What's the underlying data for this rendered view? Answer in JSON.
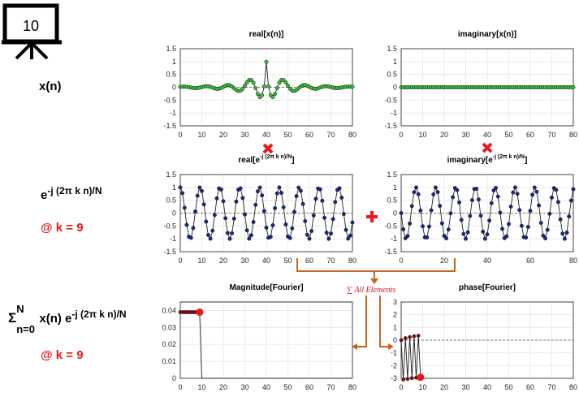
{
  "slide": {
    "number": "10"
  },
  "left_labels": {
    "row1": "x(n)",
    "row2_base": "e",
    "row2_exp": "-j (2π k n)/N",
    "row2_k": "@ k = 9",
    "row3_sigma": "Σ",
    "row3_sup": "N",
    "row3_sub": "n=0",
    "row3_mid": " x(n) e",
    "row3_exp": "-j (2π k n)/N",
    "row3_k": "@ k = 9"
  },
  "annotation": {
    "sum_label": "∑ All Elements"
  },
  "colors": {
    "green_marker": "#3cc43c",
    "blue_marker": "#1a2a8c",
    "dark_red_marker": "#8b1010",
    "highlight_red": "#e8191e",
    "arrow_orange": "#c8641e",
    "red_operator": "#e8191e"
  },
  "chart_data": [
    {
      "id": "real_x",
      "type": "line",
      "title": "real[x(n)]",
      "xlim": [
        0,
        80
      ],
      "ylim": [
        -1.5,
        1.5
      ],
      "xticks": [
        0,
        10,
        20,
        30,
        40,
        50,
        60,
        70,
        80
      ],
      "yticks": [
        -1.5,
        -1,
        -0.5,
        0,
        0.5,
        1,
        1.5
      ],
      "grid": true,
      "marker_color": "#3cc43c",
      "series": [
        {
          "x": [
            0,
            1,
            2,
            3,
            4,
            5,
            6,
            7,
            8,
            9,
            10,
            11,
            12,
            13,
            14,
            15,
            16,
            17,
            18,
            19,
            20,
            21,
            22,
            23,
            24,
            25,
            26,
            27,
            28,
            29,
            30,
            31,
            32,
            33,
            34,
            35,
            36,
            37,
            38,
            39,
            40,
            41,
            42,
            43,
            44,
            45,
            46,
            47,
            48,
            49,
            50,
            51,
            52,
            53,
            54,
            55,
            56,
            57,
            58,
            59,
            60,
            61,
            62,
            63,
            64,
            65,
            66,
            67,
            68,
            69,
            70,
            71,
            72,
            73,
            74,
            75,
            76,
            77,
            78,
            79,
            80
          ],
          "y": [
            0.016,
            0.024,
            0.025,
            0.019,
            0.006,
            -0.011,
            -0.026,
            -0.033,
            -0.029,
            -0.014,
            0.008,
            0.03,
            0.042,
            0.039,
            0.02,
            -0.011,
            -0.042,
            -0.059,
            -0.054,
            -0.026,
            0.017,
            0.062,
            0.088,
            0.081,
            0.035,
            -0.035,
            -0.104,
            -0.144,
            -0.13,
            -0.057,
            0.064,
            0.191,
            0.28,
            0.283,
            0.175,
            -0.035,
            -0.258,
            -0.384,
            -0.307,
            0.036,
            0.99,
            0.036,
            -0.307,
            -0.384,
            -0.258,
            -0.035,
            0.175,
            0.283,
            0.28,
            0.191,
            0.064,
            -0.057,
            -0.13,
            -0.144,
            -0.104,
            -0.035,
            0.035,
            0.081,
            0.088,
            0.062,
            0.017,
            -0.026,
            -0.054,
            -0.059,
            -0.042,
            -0.011,
            0.02,
            0.039,
            0.042,
            0.03,
            0.008,
            -0.014,
            -0.029,
            -0.033,
            -0.026,
            -0.011,
            0.006,
            0.019,
            0.025,
            0.024,
            0.016
          ]
        }
      ]
    },
    {
      "id": "imag_x",
      "type": "line",
      "title": "imaginary[x(n)]",
      "xlim": [
        0,
        80
      ],
      "ylim": [
        -1.5,
        1.5
      ],
      "xticks": [
        0,
        10,
        20,
        30,
        40,
        50,
        60,
        70,
        80
      ],
      "yticks": [
        -1.5,
        -1,
        -0.5,
        0,
        0.5,
        1,
        1.5
      ],
      "grid": true,
      "marker_color": "#3cc43c",
      "series": [
        {
          "x": [
            0,
            1,
            2,
            3,
            4,
            5,
            6,
            7,
            8,
            9,
            10,
            11,
            12,
            13,
            14,
            15,
            16,
            17,
            18,
            19,
            20,
            21,
            22,
            23,
            24,
            25,
            26,
            27,
            28,
            29,
            30,
            31,
            32,
            33,
            34,
            35,
            36,
            37,
            38,
            39,
            40,
            41,
            42,
            43,
            44,
            45,
            46,
            47,
            48,
            49,
            50,
            51,
            52,
            53,
            54,
            55,
            56,
            57,
            58,
            59,
            60,
            61,
            62,
            63,
            64,
            65,
            66,
            67,
            68,
            69,
            70,
            71,
            72,
            73,
            74,
            75,
            76,
            77,
            78,
            79,
            80
          ],
          "y": [
            0,
            0,
            0,
            0,
            0,
            0,
            0,
            0,
            0,
            0,
            0,
            0,
            0,
            0,
            0,
            0,
            0,
            0,
            0,
            0,
            0,
            0,
            0,
            0,
            0,
            0,
            0,
            0,
            0,
            0,
            0,
            0,
            0,
            0,
            0,
            0,
            0,
            0,
            0,
            0,
            0,
            0,
            0,
            0,
            0,
            0,
            0,
            0,
            0,
            0,
            0,
            0,
            0,
            0,
            0,
            0,
            0,
            0,
            0,
            0,
            0,
            0,
            0,
            0,
            0,
            0,
            0,
            0,
            0,
            0,
            0,
            0,
            0,
            0,
            0,
            0,
            0,
            0,
            0,
            0,
            0
          ]
        }
      ]
    },
    {
      "id": "real_e",
      "type": "line",
      "title": "real[e-j (2π k n)/N]",
      "xlim": [
        0,
        80
      ],
      "ylim": [
        -1.5,
        1.5
      ],
      "xticks": [
        0,
        10,
        20,
        30,
        40,
        50,
        60,
        70,
        80
      ],
      "yticks": [
        -1.5,
        -1,
        -0.5,
        0,
        0.5,
        1,
        1.5
      ],
      "grid": true,
      "marker_color": "#1a2a8c",
      "series": [
        {
          "x": [
            0,
            1,
            2,
            3,
            4,
            5,
            6,
            7,
            8,
            9,
            10,
            11,
            12,
            13,
            14,
            15,
            16,
            17,
            18,
            19,
            20,
            21,
            22,
            23,
            24,
            25,
            26,
            27,
            28,
            29,
            30,
            31,
            32,
            33,
            34,
            35,
            36,
            37,
            38,
            39,
            40,
            41,
            42,
            43,
            44,
            45,
            46,
            47,
            48,
            49,
            50,
            51,
            52,
            53,
            54,
            55,
            56,
            57,
            58,
            59,
            60,
            61,
            62,
            63,
            64,
            65,
            66,
            67,
            68,
            69,
            70,
            71,
            72,
            73,
            74,
            75,
            76,
            77,
            78,
            79,
            80
          ],
          "y": [
            1.0,
            0.777,
            0.208,
            -0.456,
            -0.914,
            -0.962,
            -0.58,
            0.064,
            0.676,
            0.995,
            0.858,
            0.339,
            -0.331,
            -0.853,
            -0.993,
            -0.684,
            -0.073,
            0.575,
            0.96,
            0.917,
            0.464,
            -0.199,
            -0.772,
            -1.0,
            -0.782,
            -0.217,
            0.448,
            0.911,
            0.964,
            0.587,
            -0.054,
            -0.669,
            -0.994,
            -0.863,
            -0.347,
            0.322,
            0.848,
            0.994,
            0.691,
            0.082,
            -0.567,
            -0.958,
            -0.92,
            -0.472,
            0.19,
            0.766,
            1.0,
            0.788,
            0.226,
            -0.44,
            -0.907,
            -0.967,
            -0.594,
            0.045,
            0.662,
            0.993,
            0.868,
            0.356,
            -0.314,
            -0.843,
            -0.995,
            -0.698,
            -0.091,
            0.559,
            0.955,
            0.924,
            0.48,
            -0.181,
            -0.761,
            -0.999,
            -0.793,
            -0.235,
            0.431,
            0.903,
            0.969,
            0.601,
            -0.036,
            -0.654,
            -0.992,
            -0.873,
            -0.364
          ]
        }
      ]
    },
    {
      "id": "imag_e",
      "type": "line",
      "title": "imaginary[e-j (2π k n)/N]",
      "xlim": [
        0,
        80
      ],
      "ylim": [
        -1.5,
        1.5
      ],
      "xticks": [
        0,
        20,
        40,
        60,
        80
      ],
      "yticks": [
        -1.5,
        -1,
        -0.5,
        0,
        0.5,
        1,
        1.5
      ],
      "grid": true,
      "marker_color": "#1a2a8c",
      "series": [
        {
          "x": [
            0,
            1,
            2,
            3,
            4,
            5,
            6,
            7,
            8,
            9,
            10,
            11,
            12,
            13,
            14,
            15,
            16,
            17,
            18,
            19,
            20,
            21,
            22,
            23,
            24,
            25,
            26,
            27,
            28,
            29,
            30,
            31,
            32,
            33,
            34,
            35,
            36,
            37,
            38,
            39,
            40,
            41,
            42,
            43,
            44,
            45,
            46,
            47,
            48,
            49,
            50,
            51,
            52,
            53,
            54,
            55,
            56,
            57,
            58,
            59,
            60,
            61,
            62,
            63,
            64,
            65,
            66,
            67,
            68,
            69,
            70,
            71,
            72,
            73,
            74,
            75,
            76,
            77,
            78,
            79,
            80
          ],
          "y": [
            0.0,
            -0.629,
            -0.978,
            -0.89,
            -0.406,
            0.272,
            0.815,
            0.998,
            0.737,
            0.1,
            -0.513,
            -0.941,
            -0.944,
            -0.522,
            0.109,
            0.729,
            0.997,
            0.82,
            0.282,
            -0.396,
            -0.886,
            -0.98,
            -0.637,
            -0.009,
            0.62,
            0.976,
            0.895,
            0.415,
            -0.263,
            -0.809,
            -0.999,
            -0.744,
            -0.11,
            0.504,
            0.938,
            0.947,
            0.53,
            -0.1,
            -0.722,
            -0.997,
            -0.826,
            -0.29,
            0.388,
            0.881,
            0.981,
            0.644,
            0.018,
            -0.612,
            -0.974,
            -0.899,
            -0.423,
            0.254,
            0.803,
            0.999,
            0.751,
            0.119,
            -0.496,
            -0.934,
            -0.95,
            -0.538,
            0.091,
            0.715,
            0.996,
            0.832,
            0.299,
            -0.38,
            -0.877,
            -0.983,
            -0.651,
            -0.027,
            0.605,
            0.972,
            0.903,
            0.432,
            -0.245,
            -0.797,
            -0.999,
            -0.758,
            -0.128,
            0.488,
            0.93
          ]
        }
      ]
    },
    {
      "id": "mag_fourier",
      "type": "line",
      "title": "Magnitude[Fourier]",
      "xlim": [
        0,
        80
      ],
      "ylim": [
        0,
        0.045
      ],
      "xticks": [
        0,
        10,
        20,
        30,
        40,
        50,
        60,
        70,
        80
      ],
      "yticks": [
        0,
        0.01,
        0.02,
        0.03,
        0.04
      ],
      "ytick_labels": [
        "0",
        "0.01",
        "0.02",
        "0.03",
        "0.04"
      ],
      "grid": true,
      "marker_color": "#8b1010",
      "highlight_color": "#e8191e",
      "highlight_index": 9,
      "series": [
        {
          "x": [
            0,
            1,
            2,
            3,
            4,
            5,
            6,
            7,
            8,
            9,
            10,
            11,
            12,
            13,
            14,
            15,
            16,
            17,
            18,
            19,
            20,
            21,
            22,
            23,
            24,
            25,
            26,
            27,
            28,
            29,
            30,
            31,
            32,
            33,
            34,
            35,
            36,
            37,
            38,
            39,
            40,
            41,
            42,
            43,
            44,
            45,
            46,
            47,
            48,
            49,
            50,
            51,
            52,
            53,
            54,
            55,
            56,
            57,
            58,
            59,
            60,
            61,
            62,
            63,
            64,
            65,
            66,
            67,
            68,
            69,
            70,
            71,
            72,
            73,
            74,
            75,
            76,
            77,
            78,
            79,
            80
          ],
          "y": [
            0.039,
            0.039,
            0.039,
            0.039,
            0.039,
            0.039,
            0.039,
            0.039,
            0.039,
            0.039,
            0,
            0,
            0,
            0,
            0,
            0,
            0,
            0,
            0,
            0,
            0,
            0,
            0,
            0,
            0,
            0,
            0,
            0,
            0,
            0,
            0,
            0,
            0,
            0,
            0,
            0,
            0,
            0,
            0,
            0,
            0,
            0,
            0,
            0,
            0,
            0,
            0,
            0,
            0,
            0,
            0,
            0,
            0,
            0,
            0,
            0,
            0,
            0,
            0,
            0,
            0,
            0,
            0,
            0,
            0,
            0,
            0,
            0,
            0,
            0,
            0,
            0,
            0,
            0,
            0,
            0,
            0,
            0,
            0,
            0,
            0
          ]
        }
      ]
    },
    {
      "id": "phase_fourier",
      "type": "line",
      "title": "phase[Fourier]",
      "xlim": [
        0,
        80
      ],
      "ylim": [
        -3,
        3
      ],
      "xticks": [
        0,
        10,
        20,
        30,
        40,
        50,
        60,
        70,
        80
      ],
      "yticks": [
        -3,
        -2,
        -1,
        0,
        1,
        2,
        3
      ],
      "grid": true,
      "marker_color": "#8b1010",
      "highlight_color": "#e8191e",
      "highlight_index": 9,
      "series": [
        {
          "x": [
            0,
            1,
            2,
            3,
            4,
            5,
            6,
            7,
            8,
            9
          ],
          "y": [
            0.0,
            -3.1,
            0.16,
            -3.05,
            0.24,
            -2.98,
            0.31,
            -2.95,
            0.35,
            -2.92
          ]
        }
      ]
    }
  ]
}
